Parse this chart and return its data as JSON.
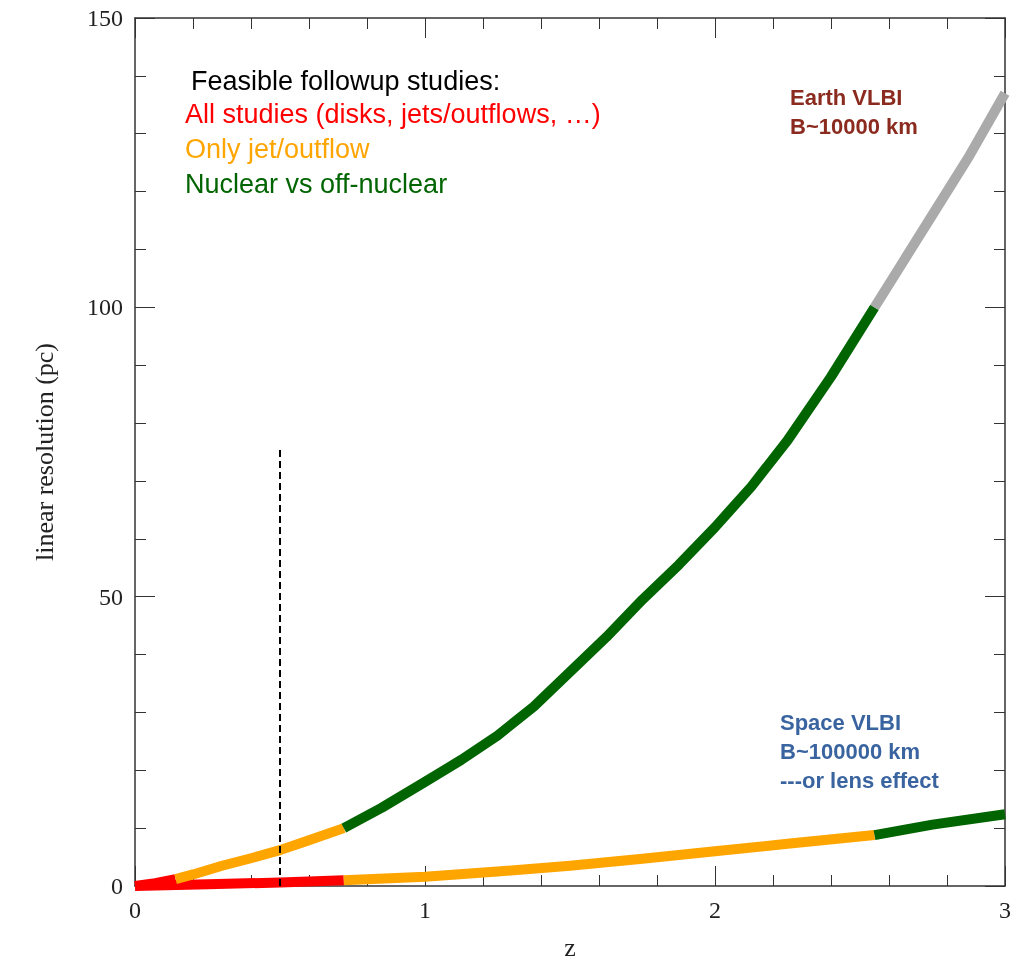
{
  "chart_data": {
    "type": "line",
    "xlabel": "z",
    "ylabel": "linear resolution (pc)",
    "legend_title": "Feasible followup studies:",
    "legend": "top left",
    "marker": "none",
    "grid": false,
    "xlim": [
      0,
      3
    ],
    "xticks": [
      0,
      1,
      2,
      3
    ],
    "ylim": [
      0,
      150
    ],
    "yticks": [
      0,
      50,
      100,
      150
    ],
    "series": [
      {
        "name": "All studies (disks, jets/outflows, …)",
        "color": "#ff0000",
        "x": [
          0,
          0.07,
          0.14,
          null,
          0,
          0.25,
          0.5,
          0.72
        ],
        "values": [
          0,
          0.5,
          1.2,
          null,
          0,
          0.3,
          0.6,
          1.0
        ]
      },
      {
        "name": "Only jet/outflow",
        "color": "#ffa500",
        "x": [
          0.14,
          0.2,
          0.3,
          0.4,
          0.5,
          0.6,
          0.72,
          null,
          0.72,
          1,
          1.25,
          1.5,
          1.75,
          2,
          2.25,
          2.55
        ],
        "values": [
          1.2,
          2,
          3.5,
          4.8,
          6.2,
          7.9,
          10,
          null,
          1.0,
          1.6,
          2.5,
          3.5,
          4.7,
          6,
          7.3,
          8.8
        ]
      },
      {
        "name": "Nuclear vs off-nuclear",
        "color": "#006400",
        "x": [
          0.72,
          0.85,
          1,
          1.125,
          1.25,
          1.375,
          1.5,
          1.625,
          1.75,
          1.875,
          2,
          2.125,
          2.25,
          2.4,
          2.55,
          null,
          2.55,
          2.75,
          3
        ],
        "values": [
          10,
          13.5,
          18,
          21.8,
          26,
          31,
          37,
          43,
          49.5,
          55.5,
          62,
          69,
          77,
          88,
          100,
          null,
          8.8,
          10.6,
          12.4
        ]
      },
      {
        "color": "#aaaaaa",
        "x": [
          2.55,
          2.65,
          2.75,
          2.875,
          3
        ],
        "values": [
          100,
          108,
          116,
          126,
          137
        ]
      },
      {
        "color": "#000000",
        "line_style": "dashed",
        "x": [
          0.5,
          0.5
        ],
        "values": [
          0,
          76
        ]
      }
    ],
    "annotations": [
      "Earth VLBI\nB~10000 km",
      "Space VLBI\nB~100000 km\n---or lens effect"
    ]
  }
}
